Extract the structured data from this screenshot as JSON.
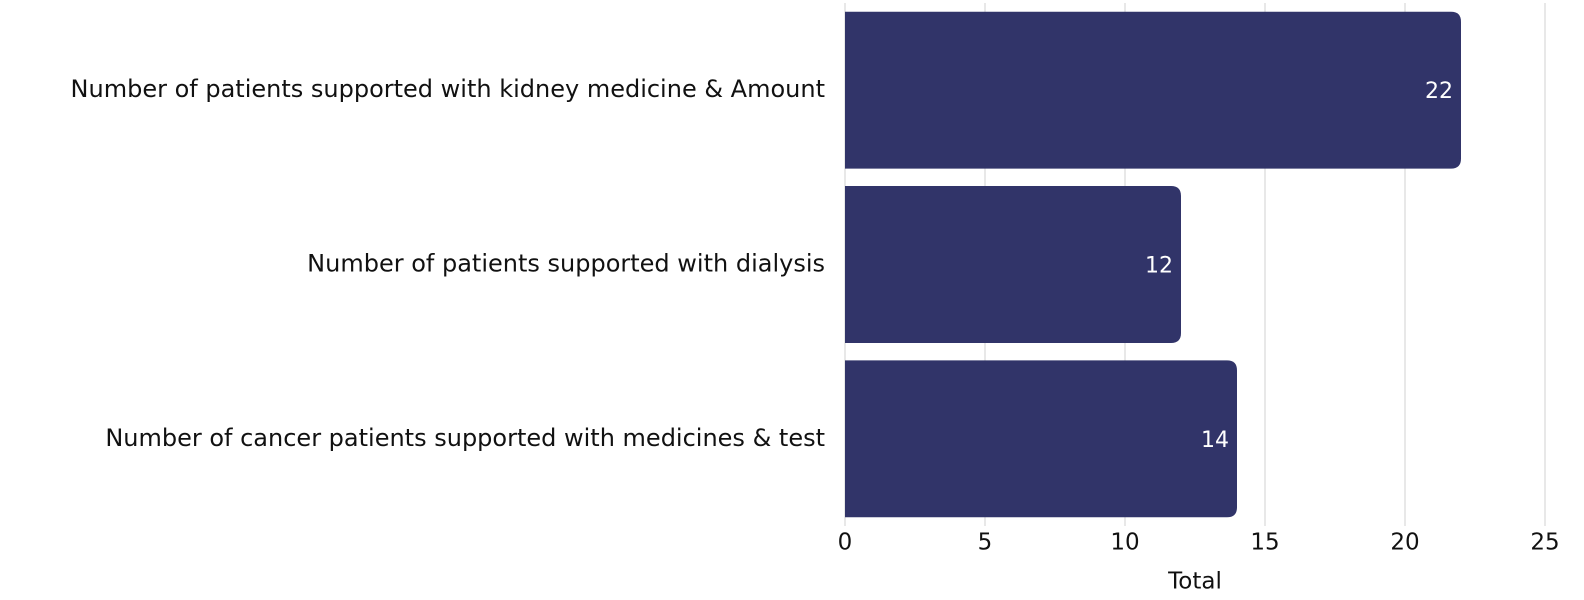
{
  "chart_data": {
    "type": "bar",
    "orientation": "horizontal",
    "categories": [
      "Number of patients supported with kidney medicine & Amount",
      "Number of patients supported with dialysis",
      "Number of cancer patients supported with medicines & test"
    ],
    "values": [
      22,
      12,
      14
    ],
    "color": "#313469",
    "xlim": [
      0,
      25
    ],
    "xticks": [
      0,
      5,
      10,
      15,
      20,
      25
    ],
    "grid": true,
    "x_label": "Total"
  }
}
